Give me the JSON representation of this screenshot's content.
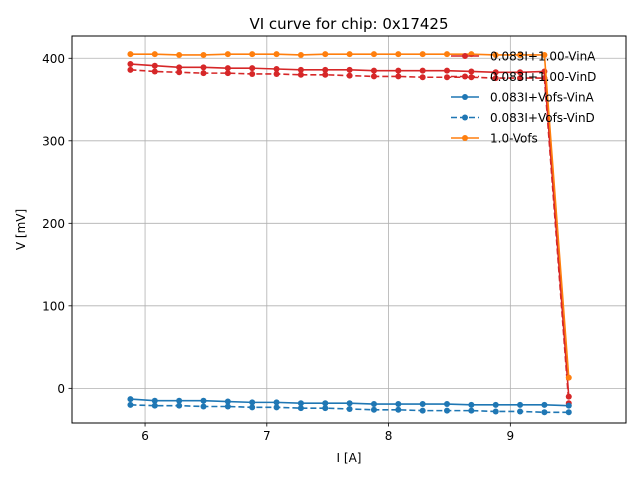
{
  "chart_data": {
    "type": "line",
    "title": "VI curve for chip: 0x17425",
    "xlabel": "I [A]",
    "ylabel": "V [mV]",
    "xlim": [
      5.4,
      9.95
    ],
    "ylim": [
      -42,
      427
    ],
    "xticks": [
      6,
      7,
      8,
      9
    ],
    "yticks": [
      0,
      100,
      200,
      300,
      400
    ],
    "grid": true,
    "legend_position": "top-right",
    "x": [
      5.88,
      6.08,
      6.28,
      6.48,
      6.68,
      6.88,
      7.08,
      7.28,
      7.48,
      7.68,
      7.88,
      8.08,
      8.28,
      8.48,
      8.68,
      8.88,
      9.08,
      9.28,
      9.48
    ],
    "series": [
      {
        "name": "0.083I+1.00-VinA",
        "color": "#d62728",
        "style": "solid",
        "values": [
          393,
          391,
          389,
          389,
          388,
          388,
          387,
          386,
          386,
          386,
          385,
          385,
          385,
          385,
          384,
          383,
          383,
          384,
          -10
        ]
      },
      {
        "name": "0.083I+1.00-VinD",
        "color": "#d62728",
        "style": "dashed",
        "values": [
          386,
          384,
          383,
          382,
          382,
          381,
          381,
          380,
          380,
          379,
          378,
          378,
          377,
          377,
          377,
          376,
          376,
          376,
          -18
        ]
      },
      {
        "name": "0.083I+Vofs-VinA",
        "color": "#1f77b4",
        "style": "solid",
        "values": [
          -13,
          -15,
          -15,
          -15,
          -16,
          -17,
          -17,
          -18,
          -18,
          -18,
          -19,
          -19,
          -19,
          -19,
          -20,
          -20,
          -20,
          -20,
          -21
        ]
      },
      {
        "name": "0.083I+Vofs-VinD",
        "color": "#1f77b4",
        "style": "dashed",
        "values": [
          -20,
          -21,
          -21,
          -22,
          -22,
          -23,
          -23,
          -24,
          -24,
          -25,
          -26,
          -26,
          -27,
          -27,
          -27,
          -28,
          -28,
          -29,
          -29
        ]
      },
      {
        "name": "1.0-Vofs",
        "color": "#ff7f0e",
        "style": "solid",
        "values": [
          405,
          405,
          404,
          404,
          405,
          405,
          405,
          404,
          405,
          405,
          405,
          405,
          405,
          405,
          405,
          404,
          404,
          404,
          13
        ]
      }
    ]
  }
}
